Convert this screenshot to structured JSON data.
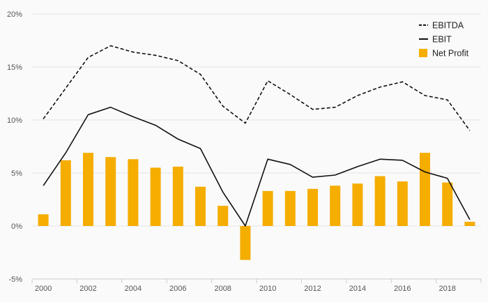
{
  "chart_data": {
    "type": "bar",
    "title": "",
    "xlabel": "",
    "ylabel": "",
    "categories": [
      2000,
      2001,
      2002,
      2003,
      2004,
      2005,
      2006,
      2007,
      2008,
      2009,
      2010,
      2011,
      2012,
      2013,
      2014,
      2015,
      2016,
      2017,
      2018,
      2019
    ],
    "x_tick_labels": [
      "2000",
      "2002",
      "2004",
      "2006",
      "2008",
      "2010",
      "2012",
      "2014",
      "2016",
      "2018"
    ],
    "y_ticks": [
      -5,
      0,
      5,
      10,
      15,
      20
    ],
    "y_tick_labels": [
      "-5%",
      "0%",
      "5%",
      "10%",
      "15%",
      "20%"
    ],
    "ylim": [
      -5,
      20
    ],
    "grid": "horizontal",
    "legend_position": "top-right",
    "series": [
      {
        "name": "EBITDA",
        "type": "line",
        "style": "dashed",
        "color": "#111111",
        "values": [
          10.1,
          13.0,
          15.9,
          17.0,
          16.4,
          16.1,
          15.6,
          14.3,
          11.3,
          9.7,
          13.7,
          12.4,
          11.0,
          11.2,
          12.3,
          13.1,
          13.6,
          12.3,
          11.9,
          9.0
        ]
      },
      {
        "name": "EBIT",
        "type": "line",
        "style": "solid",
        "color": "#111111",
        "values": [
          3.8,
          6.9,
          10.5,
          11.2,
          10.3,
          9.5,
          8.2,
          7.3,
          3.2,
          0.0,
          6.3,
          5.8,
          4.6,
          4.8,
          5.6,
          6.3,
          6.2,
          5.1,
          4.5,
          0.6
        ]
      },
      {
        "name": "Net Profit",
        "type": "bar",
        "color": "#f5ad00",
        "values": [
          1.1,
          6.2,
          6.9,
          6.5,
          6.3,
          5.5,
          5.6,
          3.7,
          1.9,
          -3.2,
          3.3,
          3.3,
          3.5,
          3.8,
          4.0,
          4.7,
          4.2,
          6.9,
          4.1,
          0.4
        ]
      }
    ]
  }
}
